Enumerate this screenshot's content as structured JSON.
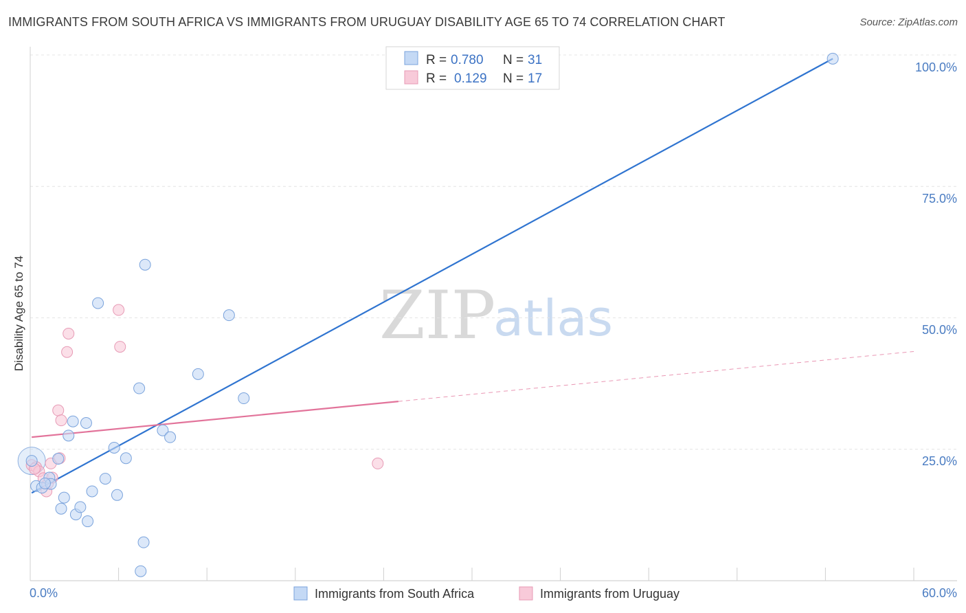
{
  "header": {
    "title": "IMMIGRANTS FROM SOUTH AFRICA VS IMMIGRANTS FROM URUGUAY DISABILITY AGE 65 TO 74 CORRELATION CHART",
    "source": "Source: ZipAtlas.com"
  },
  "watermark": {
    "zip": "ZIP",
    "atlas": "atlas"
  },
  "colors": {
    "south_africa": "#4a86d8",
    "south_africa_fill": "#c4d9f5",
    "uruguay": "#e2739a",
    "uruguay_fill": "#f8cad9",
    "tick_text": "#4a7cc2",
    "grid": "#e4e4e4"
  },
  "legend": {
    "rows": [
      {
        "r_label": "R =",
        "r_value": "0.780",
        "n_label": "N =",
        "n_value": "31"
      },
      {
        "r_label": "R =",
        "r_value": "0.129",
        "n_label": "N =",
        "n_value": "17"
      }
    ]
  },
  "chart_data": {
    "type": "scatter",
    "title": "IMMIGRANTS FROM SOUTH AFRICA VS IMMIGRANTS FROM URUGUAY DISABILITY AGE 65 TO 74 CORRELATION CHART",
    "xlabel": "",
    "ylabel": "Disability Age 65 to 74",
    "xlim": [
      0,
      60
    ],
    "ylim": [
      0,
      100
    ],
    "x_tick_labels": [
      "0.0%",
      "60.0%"
    ],
    "y_ticks": [
      25,
      50,
      75,
      100
    ],
    "y_tick_labels": [
      "25.0%",
      "50.0%",
      "75.0%",
      "100.0%"
    ],
    "grid": true,
    "legend_position": "top-center",
    "series": [
      {
        "name": "Immigrants from South Africa",
        "R": 0.78,
        "N": 31,
        "points": [
          [
            0.1,
            22.8
          ],
          [
            0.4,
            18.0
          ],
          [
            0.8,
            17.7
          ],
          [
            1.3,
            19.6
          ],
          [
            1.4,
            18.4
          ],
          [
            1.9,
            23.2
          ],
          [
            2.1,
            13.7
          ],
          [
            2.3,
            15.8
          ],
          [
            2.6,
            27.6
          ],
          [
            2.9,
            30.3
          ],
          [
            3.1,
            12.6
          ],
          [
            3.4,
            14.0
          ],
          [
            3.8,
            30.0
          ],
          [
            3.9,
            11.3
          ],
          [
            4.2,
            17.0
          ],
          [
            4.6,
            52.8
          ],
          [
            5.1,
            19.4
          ],
          [
            5.7,
            25.3
          ],
          [
            5.9,
            16.3
          ],
          [
            6.5,
            23.3
          ],
          [
            7.4,
            36.6
          ],
          [
            7.5,
            1.8
          ],
          [
            7.7,
            7.3
          ],
          [
            7.8,
            60.1
          ],
          [
            9.0,
            28.6
          ],
          [
            9.5,
            27.3
          ],
          [
            11.4,
            39.3
          ],
          [
            13.5,
            50.5
          ],
          [
            14.5,
            34.7
          ],
          [
            1.0,
            18.5
          ],
          [
            54.5,
            99.3
          ]
        ],
        "trend": {
          "x": [
            0.1,
            54.5
          ],
          "y": [
            16.7,
            99.3
          ]
        }
      },
      {
        "name": "Immigrants from Uruguay",
        "R": 0.129,
        "N": 17,
        "points": [
          [
            0.1,
            22.0
          ],
          [
            0.4,
            21.6
          ],
          [
            0.6,
            20.8
          ],
          [
            0.9,
            19.5
          ],
          [
            1.1,
            17.0
          ],
          [
            1.2,
            18.5
          ],
          [
            1.4,
            22.3
          ],
          [
            1.5,
            19.6
          ],
          [
            1.9,
            32.4
          ],
          [
            2.0,
            23.3
          ],
          [
            2.1,
            30.5
          ],
          [
            2.5,
            43.5
          ],
          [
            2.6,
            47.0
          ],
          [
            6.0,
            51.5
          ],
          [
            6.1,
            44.5
          ],
          [
            23.6,
            22.3
          ],
          [
            0.3,
            21.3
          ]
        ],
        "trend_solid": {
          "x": [
            0.1,
            25.0
          ],
          "y": [
            27.3,
            34.1
          ]
        },
        "trend_dashed": {
          "x": [
            25.0,
            60.0
          ],
          "y": [
            34.1,
            43.6
          ]
        }
      }
    ]
  }
}
